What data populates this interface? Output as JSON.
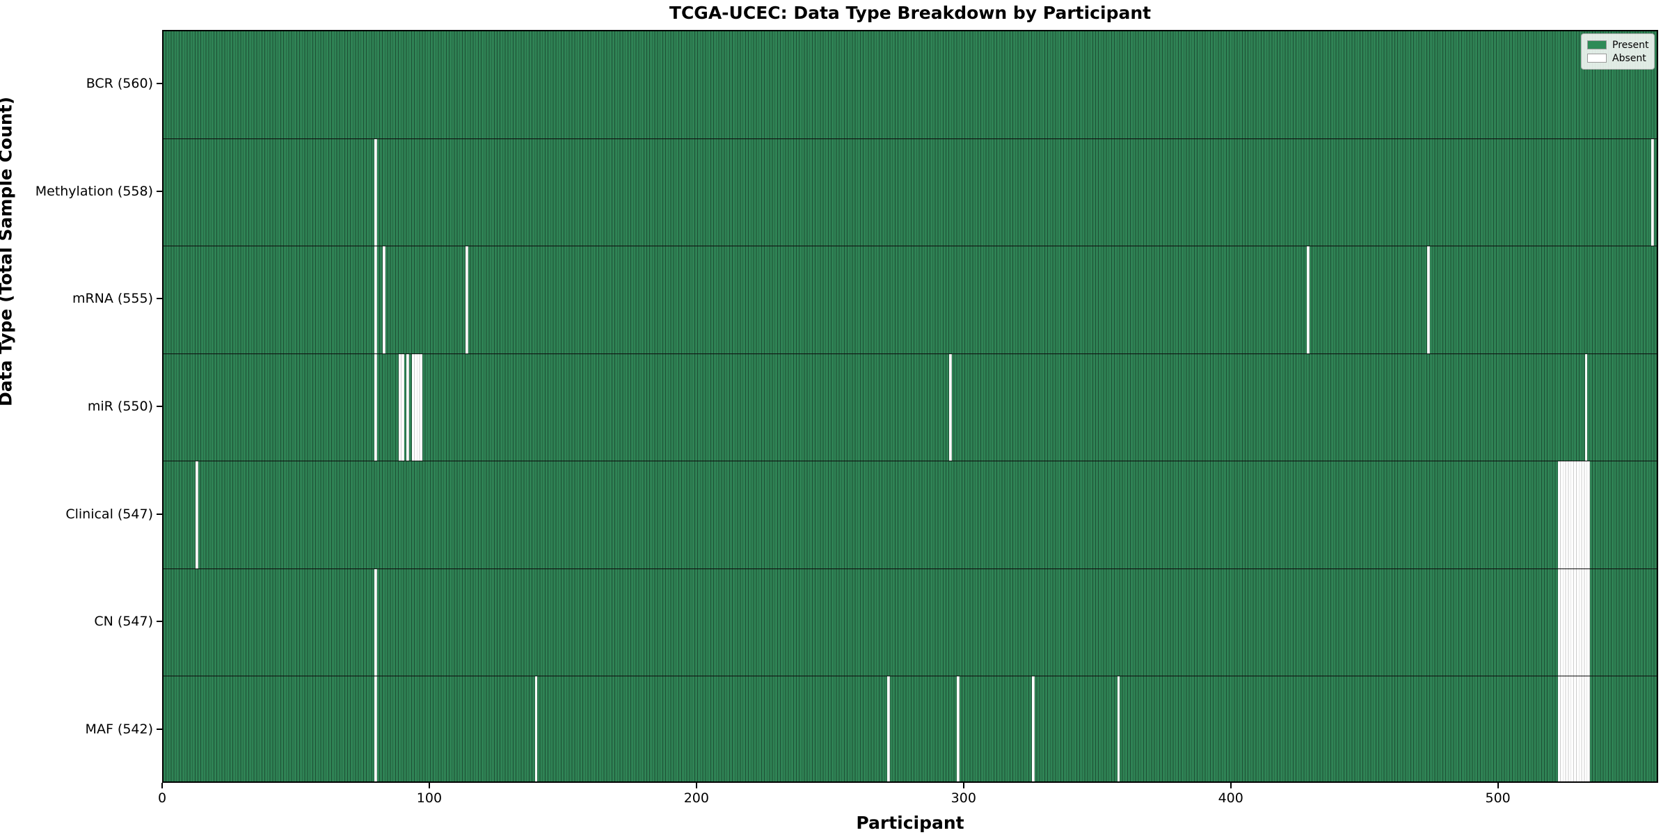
{
  "chart_data": {
    "type": "heatmap",
    "title": "TCGA-UCEC: Data Type Breakdown by Participant",
    "xlabel": "Participant",
    "ylabel": "Data Type (Total Sample Count)",
    "x_ticks": [
      0,
      100,
      200,
      300,
      400,
      500
    ],
    "x_max": 560,
    "n_participants": 560,
    "legend": {
      "position": "upper right",
      "entries": [
        {
          "label": "Present",
          "color": "#2e8b57"
        },
        {
          "label": "Absent",
          "color": "#ffffff"
        }
      ]
    },
    "grid": false,
    "rows": [
      {
        "label": "BCR (560)",
        "data_type": "BCR",
        "present_count": 560,
        "absent_count": 0,
        "absent_runs": []
      },
      {
        "label": "Methylation (558)",
        "data_type": "Methylation",
        "present_count": 558,
        "absent_count": 2,
        "absent_runs": [
          {
            "start": 79,
            "length": 1
          },
          {
            "start": 557,
            "length": 1
          }
        ]
      },
      {
        "label": "mRNA (555)",
        "data_type": "mRNA",
        "present_count": 555,
        "absent_count": 5,
        "absent_runs": [
          {
            "start": 79,
            "length": 1
          },
          {
            "start": 82,
            "length": 1
          },
          {
            "start": 113,
            "length": 1
          },
          {
            "start": 428,
            "length": 1
          },
          {
            "start": 473,
            "length": 1
          }
        ]
      },
      {
        "label": "miR (550)",
        "data_type": "miR",
        "present_count": 550,
        "absent_count": 10,
        "absent_runs": [
          {
            "start": 79,
            "length": 1
          },
          {
            "start": 88,
            "length": 2
          },
          {
            "start": 91,
            "length": 1
          },
          {
            "start": 93,
            "length": 4
          },
          {
            "start": 294,
            "length": 1
          },
          {
            "start": 532,
            "length": 1
          }
        ]
      },
      {
        "label": "Clinical (547)",
        "data_type": "Clinical",
        "present_count": 547,
        "absent_count": 13,
        "absent_runs": [
          {
            "start": 12,
            "length": 1
          },
          {
            "start": 522,
            "length": 12
          }
        ]
      },
      {
        "label": "CN (547)",
        "data_type": "CN",
        "present_count": 547,
        "absent_count": 13,
        "absent_runs": [
          {
            "start": 79,
            "length": 1
          },
          {
            "start": 522,
            "length": 12
          }
        ]
      },
      {
        "label": "MAF (542)",
        "data_type": "MAF",
        "present_count": 542,
        "absent_count": 18,
        "absent_runs": [
          {
            "start": 79,
            "length": 1
          },
          {
            "start": 139,
            "length": 1
          },
          {
            "start": 271,
            "length": 1
          },
          {
            "start": 297,
            "length": 1
          },
          {
            "start": 325,
            "length": 1
          },
          {
            "start": 357,
            "length": 1
          },
          {
            "start": 522,
            "length": 12
          }
        ]
      }
    ]
  }
}
